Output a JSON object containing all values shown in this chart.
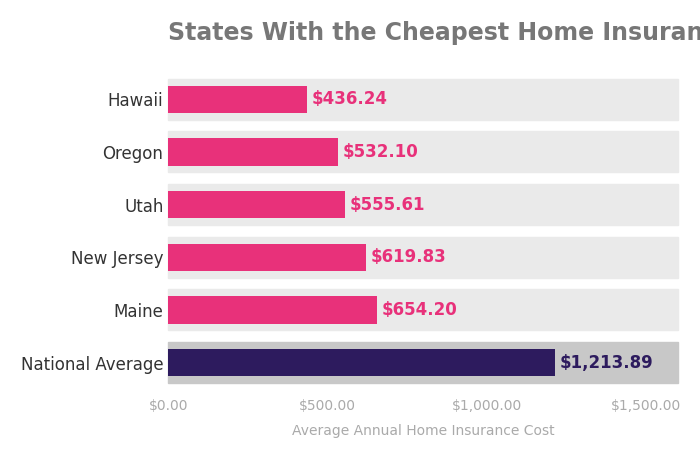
{
  "title": "States With the Cheapest Home Insurance Rates",
  "categories": [
    "Hawaii",
    "Oregon",
    "Utah",
    "New Jersey",
    "Maine",
    "National Average"
  ],
  "values": [
    436.24,
    532.1,
    555.61,
    619.83,
    654.2,
    1213.89
  ],
  "labels": [
    "$436.24",
    "$532.10",
    "$555.61",
    "$619.83",
    "$654.20",
    "$1,213.89"
  ],
  "bar_colors": [
    "#E8317A",
    "#E8317A",
    "#E8317A",
    "#E8317A",
    "#E8317A",
    "#2D1B5E"
  ],
  "label_colors": [
    "#E8317A",
    "#E8317A",
    "#E8317A",
    "#E8317A",
    "#E8317A",
    "#2D1B5E"
  ],
  "row_bg_colors": [
    "#EAEAEA",
    "#EAEAEA",
    "#EAEAEA",
    "#EAEAEA",
    "#EAEAEA",
    "#C8C8C8"
  ],
  "xlabel": "Average Annual Home Insurance Cost",
  "xlim": [
    0,
    1600
  ],
  "xticks": [
    0,
    500,
    1000,
    1500
  ],
  "xtick_labels": [
    "$0.00",
    "$500.00",
    "$1,000.00",
    "$1,500.00"
  ],
  "title_fontsize": 17,
  "label_fontsize": 12,
  "tick_fontsize": 10,
  "xlabel_fontsize": 10,
  "background_color": "#FFFFFF",
  "title_color": "#777777",
  "ytick_color": "#333333",
  "xtick_color": "#AAAAAA",
  "xlabel_color": "#AAAAAA"
}
